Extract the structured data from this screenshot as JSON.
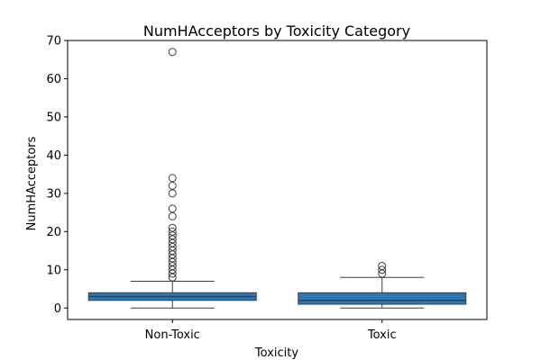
{
  "chart_data": {
    "type": "box",
    "title": "NumHAcceptors by Toxicity Category",
    "xlabel": "Toxicity",
    "ylabel": "NumHAcceptors",
    "ylim": [
      -3,
      70
    ],
    "yticks": [
      0,
      10,
      20,
      30,
      40,
      50,
      60,
      70
    ],
    "grid": false,
    "legend": "none",
    "box_color": "#2e77b5",
    "line_color": "#3d3d3d",
    "categories": [
      "Non-Toxic",
      "Toxic"
    ],
    "boxes": [
      {
        "category": "Non-Toxic",
        "whisker_low": 0,
        "q1": 2,
        "median": 3,
        "q3": 4,
        "whisker_high": 7,
        "outliers": [
          8,
          9,
          10,
          11,
          12,
          13,
          14,
          15,
          16,
          17,
          18,
          19,
          20,
          21,
          24,
          26,
          30,
          32,
          34,
          67
        ]
      },
      {
        "category": "Toxic",
        "whisker_low": 0,
        "q1": 1,
        "median": 2,
        "q3": 4,
        "whisker_high": 8,
        "outliers": [
          9,
          10,
          11
        ]
      }
    ]
  }
}
